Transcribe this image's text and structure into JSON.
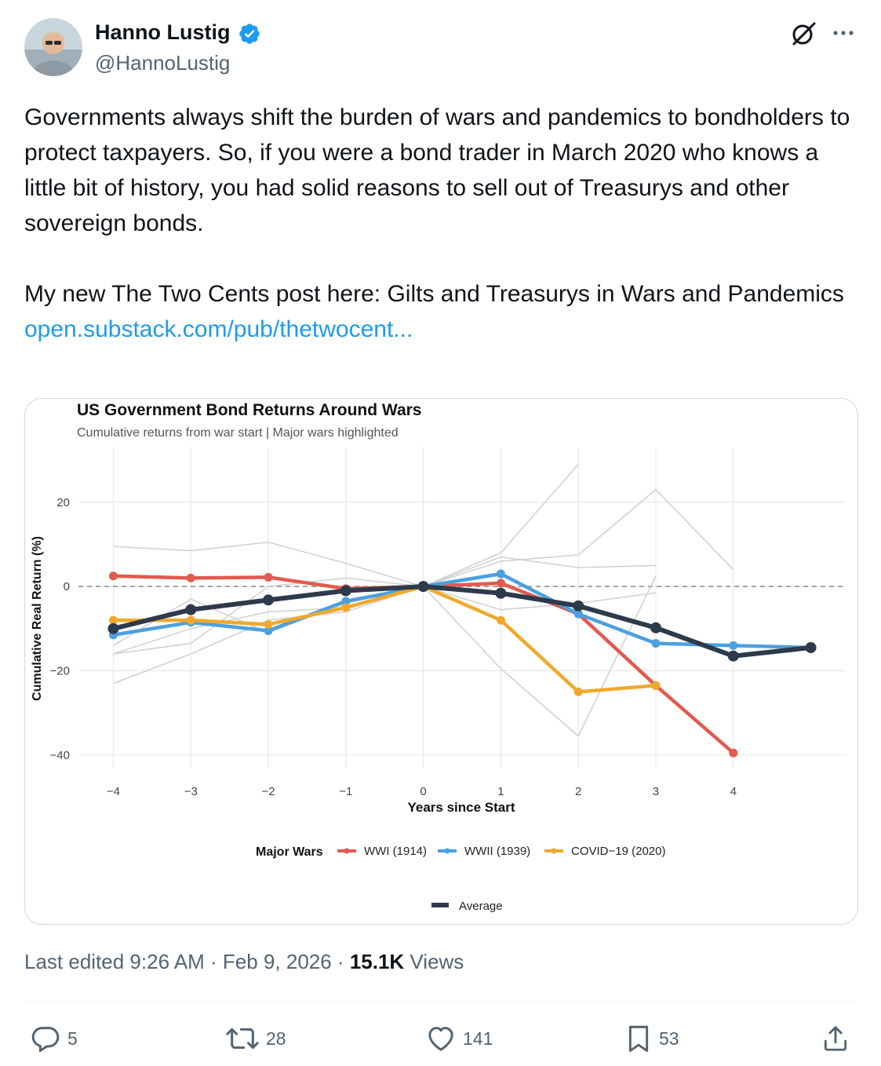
{
  "author": {
    "display_name": "Hanno Lustig",
    "handle": "@HannoLustig"
  },
  "tweet": {
    "paragraph1": "Governments always shift the burden of wars and pandemics to bondholders to protect taxpayers. So, if you were a bond trader in March 2020 who knows a little bit of history, you had solid reasons to sell out of Treasurys and other sovereign bonds.",
    "paragraph2": "My new The Two Cents post here: Gilts and Treasurys in Wars and Pandemics",
    "link_text": "open.substack.com/pub/thetwocent..."
  },
  "chart_data": {
    "type": "line",
    "title": "US Government Bond Returns Around Wars",
    "subtitle": "Cumulative returns from war start | Major wars highlighted",
    "xlabel": "Years since Start",
    "ylabel": "Cumulative Real Return (%)",
    "x_ticks": [
      -4,
      -3,
      -2,
      -1,
      0,
      1,
      2,
      3,
      4
    ],
    "y_ticks": [
      20,
      0,
      -20,
      -40
    ],
    "x_tick_labels": [
      "−4",
      "−3",
      "−2",
      "−1",
      "0",
      "1",
      "2",
      "3",
      "4"
    ],
    "y_tick_labels": [
      "20",
      "0",
      "−20",
      "−40"
    ],
    "xlim": [
      -4.45,
      5.45
    ],
    "ylim": [
      -43,
      33
    ],
    "legend_title": "Major Wars",
    "average_label": "Average",
    "background_series": [
      {
        "x": [
          -4,
          -3,
          -2,
          -1,
          0,
          1,
          2,
          3,
          4
        ],
        "y": [
          9.5,
          8.5,
          10.5,
          5.5,
          0,
          6,
          7.5,
          23,
          4
        ]
      },
      {
        "x": [
          -4,
          -3,
          -2,
          -1,
          0,
          1,
          2,
          3
        ],
        "y": [
          -16,
          -13.5,
          0,
          2,
          0,
          -5.5,
          -4,
          -1.5
        ]
      },
      {
        "x": [
          -4,
          -3,
          -2,
          -1,
          0,
          1,
          2,
          3
        ],
        "y": [
          -23,
          -16,
          -8,
          -6,
          0,
          7,
          4.5,
          5
        ]
      },
      {
        "x": [
          -4,
          -3,
          -2,
          -1,
          0,
          1,
          2,
          3
        ],
        "y": [
          -14,
          -3,
          -11,
          -4,
          0,
          -19.5,
          -35.5,
          2.5
        ]
      },
      {
        "x": [
          -4,
          -3,
          -2,
          -1,
          0,
          1,
          2
        ],
        "y": [
          -16,
          -10,
          -6,
          -5,
          0,
          8,
          29
        ]
      }
    ],
    "series": [
      {
        "name": "WWI (1914)",
        "color": "#e15a4f",
        "x": [
          -4,
          -3,
          -2,
          -1,
          0,
          1,
          2,
          3,
          4
        ],
        "y": [
          2.5,
          2,
          2.2,
          -0.5,
          0,
          0.8,
          -6.5,
          -23.5,
          -39.5
        ]
      },
      {
        "name": "WWII (1939)",
        "color": "#4aa0e0",
        "x": [
          -4,
          -3,
          -2,
          -1,
          0,
          1,
          2,
          3,
          4,
          5
        ],
        "y": [
          -11.5,
          -8.5,
          -10.5,
          -3.5,
          0,
          3,
          -6.5,
          -13.5,
          -14,
          -14.5
        ]
      },
      {
        "name": "COVID−19 (2020)",
        "color": "#f0a92c",
        "x": [
          -4,
          -3,
          -2,
          -1,
          0,
          1,
          2,
          3
        ],
        "y": [
          -8,
          -8,
          -9,
          -5,
          0,
          -8,
          -25,
          -23.5
        ]
      },
      {
        "name": "Average",
        "color": "#2d3a4b",
        "x": [
          -4,
          -3,
          -2,
          -1,
          0,
          1,
          2,
          3,
          4,
          5
        ],
        "y": [
          -10,
          -5.5,
          -3.2,
          -1,
          0,
          -1.6,
          -4.6,
          -9.8,
          -16.5,
          -14.5
        ]
      }
    ]
  },
  "meta": {
    "edited_label": "Last edited 9:26 AM · Feb 9, 2026 · ",
    "views_count": "15.1K",
    "views_label": " Views"
  },
  "actions": {
    "replies": "5",
    "reposts": "28",
    "likes": "141",
    "bookmarks": "53"
  }
}
